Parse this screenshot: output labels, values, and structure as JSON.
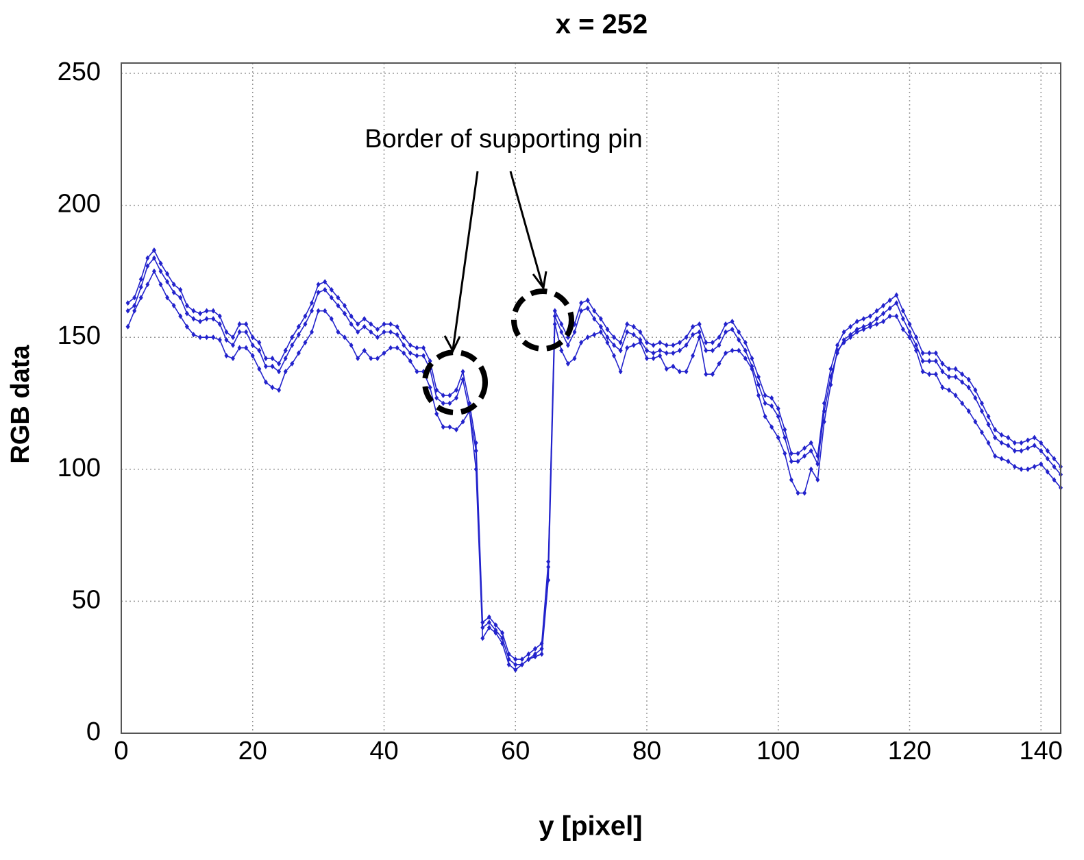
{
  "chart_data": {
    "type": "line",
    "title": "x = 252",
    "x_label": "y [pixel]",
    "y_label": "RGB data",
    "annotation": "Border of supporting pin",
    "xlim": [
      0,
      143
    ],
    "ylim": [
      0,
      250
    ],
    "xticks": [
      0,
      20,
      40,
      60,
      80,
      100,
      120,
      140
    ],
    "yticks": [
      0,
      50,
      100,
      150,
      200,
      250
    ],
    "grid": true,
    "x": [
      1,
      2,
      3,
      4,
      5,
      6,
      7,
      8,
      9,
      10,
      11,
      12,
      13,
      14,
      15,
      16,
      17,
      18,
      19,
      20,
      21,
      22,
      23,
      24,
      25,
      26,
      27,
      28,
      29,
      30,
      31,
      32,
      33,
      34,
      35,
      36,
      37,
      38,
      39,
      40,
      41,
      42,
      43,
      44,
      45,
      46,
      47,
      48,
      49,
      50,
      51,
      52,
      53,
      54,
      55,
      56,
      57,
      58,
      59,
      60,
      61,
      62,
      63,
      64,
      65,
      66,
      67,
      68,
      69,
      70,
      71,
      72,
      73,
      74,
      75,
      76,
      77,
      78,
      79,
      80,
      81,
      82,
      83,
      84,
      85,
      86,
      87,
      88,
      89,
      90,
      91,
      92,
      93,
      94,
      95,
      96,
      97,
      98,
      99,
      100,
      101,
      102,
      103,
      104,
      105,
      106,
      107,
      108,
      109,
      110,
      111,
      112,
      113,
      114,
      115,
      116,
      117,
      118,
      119,
      120,
      121,
      122,
      123,
      124,
      125,
      126,
      127,
      128,
      129,
      130,
      131,
      132,
      133,
      134,
      135,
      136,
      137,
      138,
      139,
      140,
      141,
      142,
      143
    ],
    "series": [
      {
        "color": "#2222cc",
        "values": [
          163,
          165,
          172,
          180,
          183,
          178,
          174,
          170,
          168,
          162,
          160,
          159,
          160,
          160,
          158,
          152,
          150,
          155,
          155,
          150,
          148,
          142,
          142,
          140,
          145,
          150,
          154,
          158,
          163,
          170,
          171,
          168,
          165,
          162,
          158,
          155,
          157,
          155,
          153,
          155,
          155,
          154,
          150,
          147,
          146,
          146,
          141,
          130,
          128,
          128,
          130,
          137,
          125,
          110,
          42,
          44,
          41,
          38,
          30,
          28,
          28,
          30,
          32,
          34,
          65,
          160,
          155,
          150,
          155,
          163,
          164,
          160,
          157,
          153,
          150,
          148,
          155,
          154,
          152,
          148,
          147,
          148,
          147,
          147,
          148,
          150,
          154,
          155,
          148,
          148,
          150,
          155,
          156,
          152,
          148,
          142,
          135,
          128,
          127,
          123,
          115,
          106,
          106,
          108,
          110,
          105,
          125,
          138,
          147,
          152,
          154,
          156,
          157,
          158,
          160,
          162,
          164,
          166,
          160,
          155,
          150,
          144,
          144,
          144,
          140,
          138,
          138,
          136,
          134,
          130,
          125,
          120,
          115,
          113,
          112,
          110,
          110,
          111,
          112,
          110,
          107,
          104,
          101
        ]
      },
      {
        "color": "#2222cc",
        "values": [
          160,
          162,
          169,
          177,
          180,
          175,
          171,
          167,
          165,
          159,
          157,
          156,
          157,
          157,
          155,
          149,
          147,
          152,
          152,
          147,
          145,
          139,
          139,
          137,
          142,
          147,
          151,
          155,
          160,
          167,
          168,
          165,
          162,
          159,
          155,
          152,
          154,
          152,
          150,
          152,
          152,
          151,
          147,
          144,
          143,
          143,
          138,
          127,
          125,
          125,
          127,
          134,
          122,
          107,
          40,
          42,
          39,
          36,
          28,
          26,
          26,
          28,
          30,
          32,
          63,
          158,
          152,
          147,
          152,
          160,
          161,
          157,
          154,
          150,
          147,
          145,
          152,
          151,
          149,
          145,
          144,
          145,
          144,
          144,
          145,
          147,
          151,
          152,
          145,
          145,
          147,
          152,
          153,
          149,
          145,
          139,
          132,
          125,
          124,
          120,
          112,
          103,
          103,
          105,
          107,
          102,
          122,
          135,
          144,
          149,
          151,
          153,
          154,
          155,
          157,
          159,
          161,
          163,
          157,
          152,
          147,
          141,
          141,
          141,
          137,
          135,
          135,
          133,
          131,
          127,
          122,
          117,
          112,
          110,
          109,
          107,
          107,
          108,
          109,
          107,
          104,
          101,
          98
        ]
      },
      {
        "color": "#2222cc",
        "values": [
          154,
          160,
          165,
          170,
          175,
          170,
          165,
          162,
          158,
          154,
          151,
          150,
          150,
          150,
          149,
          143,
          142,
          146,
          146,
          143,
          138,
          133,
          131,
          130,
          137,
          140,
          144,
          148,
          152,
          160,
          160,
          157,
          152,
          150,
          147,
          142,
          145,
          142,
          142,
          144,
          146,
          146,
          144,
          141,
          137,
          137,
          131,
          121,
          116,
          116,
          115,
          118,
          122,
          100,
          36,
          40,
          38,
          34,
          26,
          24,
          26,
          28,
          29,
          30,
          58,
          155,
          145,
          140,
          142,
          148,
          150,
          151,
          152,
          148,
          143,
          137,
          146,
          147,
          148,
          142,
          142,
          143,
          138,
          139,
          137,
          137,
          143,
          150,
          136,
          136,
          140,
          144,
          145,
          145,
          142,
          138,
          128,
          120,
          116,
          112,
          106,
          96,
          91,
          91,
          100,
          96,
          118,
          132,
          145,
          148,
          150,
          152,
          153,
          154,
          155,
          156,
          158,
          158,
          153,
          150,
          145,
          137,
          136,
          136,
          131,
          130,
          128,
          125,
          122,
          118,
          114,
          110,
          105,
          104,
          103,
          101,
          100,
          100,
          101,
          102,
          99,
          96,
          93
        ]
      }
    ]
  }
}
